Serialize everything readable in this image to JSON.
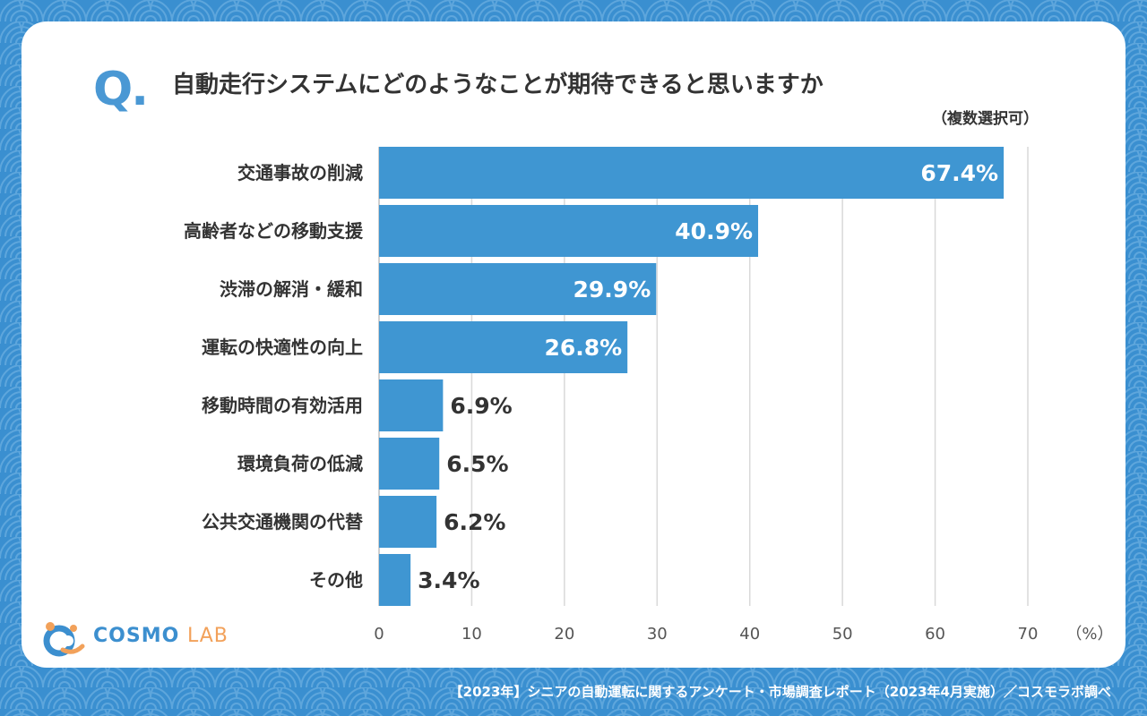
{
  "question": {
    "mark": "Q.",
    "title": "自動走行システムにどのようなことが期待できると思いますか",
    "note": "（複数選択可）"
  },
  "logo": {
    "text_main": "COSMO",
    "text_sub": "LAB"
  },
  "footer": "【2023年】シニアの自動運転に関するアンケート・市場調査レポート（2023年4月実施）／コスモラボ調べ",
  "colors": {
    "bar": "#3f96d2",
    "background": "#3a8fd0",
    "card": "#ffffff",
    "text": "#333333",
    "label_inside": "#ffffff"
  },
  "chart_data": {
    "type": "bar",
    "orientation": "horizontal",
    "categories": [
      "交通事故の削減",
      "高齢者などの移動支援",
      "渋滞の解消・緩和",
      "運転の快適性の向上",
      "移動時間の有効活用",
      "環境負荷の低減",
      "公共交通機関の代替",
      "その他"
    ],
    "values": [
      67.4,
      40.9,
      29.9,
      26.8,
      6.9,
      6.5,
      6.2,
      3.4
    ],
    "data_labels": [
      "67.4%",
      "40.9%",
      "29.9%",
      "26.8%",
      "6.9%",
      "6.5%",
      "6.2%",
      "3.4%"
    ],
    "xlim": [
      0,
      70
    ],
    "x_ticks": [
      0,
      10,
      20,
      30,
      40,
      50,
      60,
      70
    ],
    "x_tick_labels": [
      "0",
      "10",
      "20",
      "30",
      "40",
      "50",
      "60",
      "70"
    ],
    "unit_label": "（%）",
    "grid": true
  }
}
